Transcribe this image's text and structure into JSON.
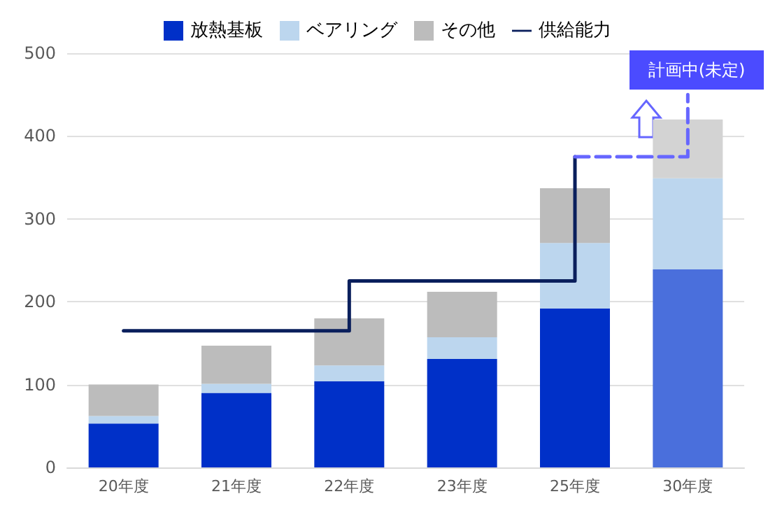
{
  "chart_data": {
    "type": "bar",
    "stacked": true,
    "categories": [
      "20年度",
      "21年度",
      "22年度",
      "23年度",
      "25年度",
      "30年度"
    ],
    "series": [
      {
        "name": "放熱基板",
        "color": "#0030c8",
        "colors": [
          "#0030c8",
          "#0030c8",
          "#0030c8",
          "#0030c8",
          "#0030c8",
          "#4a6fdc"
        ],
        "values": [
          53,
          90,
          104,
          131,
          192,
          239
        ]
      },
      {
        "name": "ベアリング",
        "color": "#bcd6ee",
        "colors": [
          "#bcd6ee",
          "#bcd6ee",
          "#bcd6ee",
          "#bcd6ee",
          "#bcd6ee",
          "#bcd6ee"
        ],
        "values": [
          9,
          11,
          19,
          26,
          79,
          110
        ]
      },
      {
        "name": "その他",
        "color": "#bcbcbc",
        "colors": [
          "#bcbcbc",
          "#bcbcbc",
          "#bcbcbc",
          "#bcbcbc",
          "#bcbcbc",
          "#d3d3d3"
        ],
        "values": [
          38,
          46,
          57,
          55,
          66,
          71
        ]
      },
      {
        "name": "供給能力",
        "type": "step",
        "color": "#0a1f5c",
        "line_style": "solid",
        "values": [
          165,
          165,
          225,
          225,
          375,
          null
        ]
      },
      {
        "type": "step",
        "color": "#6666ff",
        "line_style": "dashed",
        "values": [
          null,
          null,
          null,
          null,
          375,
          450
        ]
      }
    ],
    "ylim": [
      0,
      500
    ],
    "yticks": [
      0,
      100,
      200,
      300,
      400,
      500
    ],
    "grid": "y",
    "legend": "top",
    "marker": "none",
    "annotations": [
      "計画中(未定)"
    ]
  }
}
